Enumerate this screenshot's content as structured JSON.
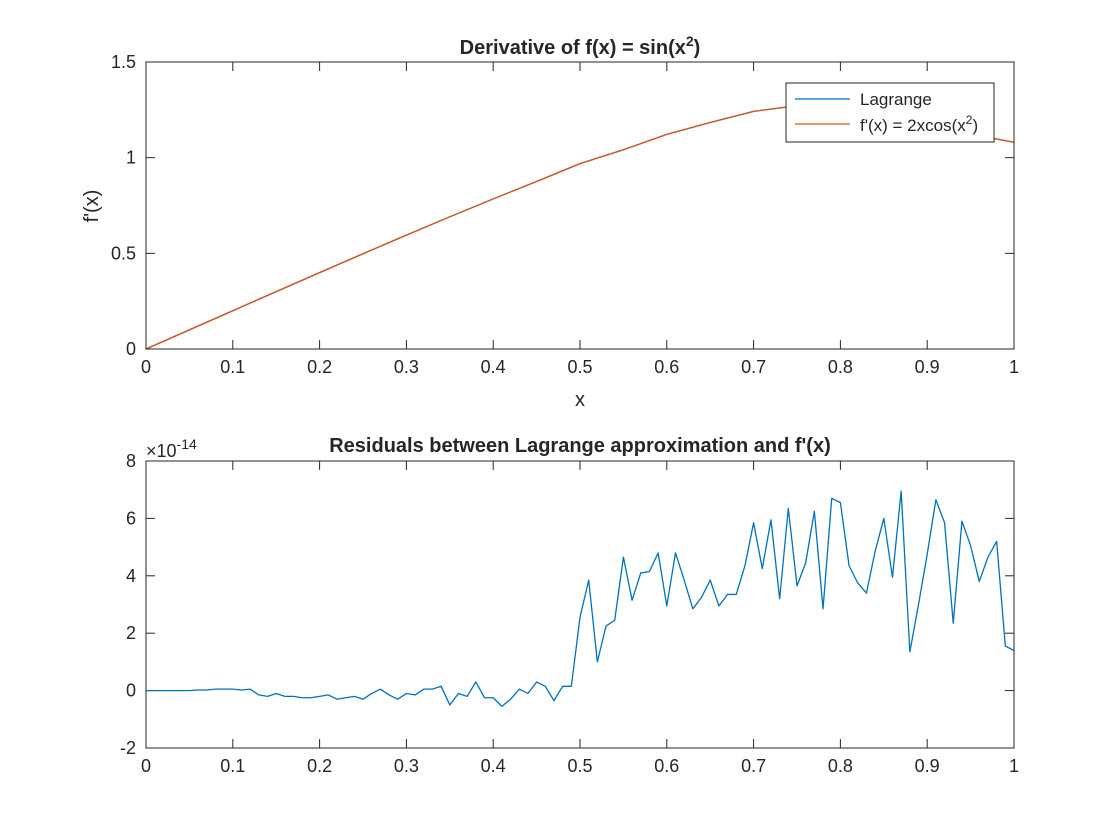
{
  "chart_data": [
    {
      "type": "line",
      "title": "Derivative of f(x) = sin(x",
      "title_sup": "2",
      "title_end": ")",
      "xlabel": "x",
      "ylabel": "f'(x)",
      "xlim": [
        0,
        1
      ],
      "ylim": [
        0,
        1.5
      ],
      "xticks": [
        0,
        0.1,
        0.2,
        0.3,
        0.4,
        0.5,
        0.6,
        0.7,
        0.8,
        0.9,
        1
      ],
      "xtick_labels": [
        "0",
        "0.1",
        "0.2",
        "0.3",
        "0.4",
        "0.5",
        "0.6",
        "0.7",
        "0.8",
        "0.9",
        "1"
      ],
      "yticks": [
        0,
        0.5,
        1,
        1.5
      ],
      "ytick_labels": [
        "0",
        "0.5",
        "1",
        "1.5"
      ],
      "grid": false,
      "legend_position": "top-right",
      "series": [
        {
          "name": "Lagrange",
          "color": "#0072BD",
          "x": [
            0,
            0.05,
            0.1,
            0.15,
            0.2,
            0.25,
            0.3,
            0.35,
            0.4,
            0.45,
            0.5,
            0.55,
            0.6,
            0.65,
            0.7,
            0.75,
            0.8,
            0.85,
            0.9,
            0.95,
            1
          ],
          "y": [
            0,
            0.1,
            0.2,
            0.2999,
            0.3992,
            0.498,
            0.5951,
            0.691,
            0.7844,
            0.8755,
            0.9689,
            1.0413,
            1.1219,
            1.1838,
            1.242,
            1.2716,
            1.2819,
            1.2654,
            1.2152,
            1.1227,
            1.0806
          ]
        },
        {
          "name": "f'(x) = 2xcos(x",
          "name_sup": "2",
          "name_end": ")",
          "color": "#D95319",
          "x": [
            0,
            0.05,
            0.1,
            0.15,
            0.2,
            0.25,
            0.3,
            0.35,
            0.4,
            0.45,
            0.5,
            0.55,
            0.6,
            0.65,
            0.7,
            0.75,
            0.8,
            0.85,
            0.9,
            0.95,
            1
          ],
          "y": [
            0,
            0.1,
            0.2,
            0.2999,
            0.3992,
            0.498,
            0.5951,
            0.691,
            0.7844,
            0.8755,
            0.9689,
            1.0413,
            1.1219,
            1.1838,
            1.242,
            1.2716,
            1.2819,
            1.2654,
            1.2152,
            1.1227,
            1.0806
          ]
        }
      ]
    },
    {
      "type": "line",
      "title": "Residuals between Lagrange approximation and f'(x)",
      "xlim": [
        0,
        1
      ],
      "ylim": [
        -2,
        8
      ],
      "y_exponent_base": "×10",
      "y_exponent": "-14",
      "xticks": [
        0,
        0.1,
        0.2,
        0.3,
        0.4,
        0.5,
        0.6,
        0.7,
        0.8,
        0.9,
        1
      ],
      "xtick_labels": [
        "0",
        "0.1",
        "0.2",
        "0.3",
        "0.4",
        "0.5",
        "0.6",
        "0.7",
        "0.8",
        "0.9",
        "1"
      ],
      "yticks": [
        -2,
        0,
        2,
        4,
        6,
        8
      ],
      "ytick_labels": [
        "-2",
        "0",
        "2",
        "4",
        "6",
        "8"
      ],
      "grid": false,
      "series": [
        {
          "color": "#0072BD",
          "x": [
            0,
            0.01,
            0.02,
            0.03,
            0.04,
            0.05,
            0.06,
            0.07,
            0.08,
            0.09,
            0.1,
            0.11,
            0.12,
            0.13,
            0.14,
            0.15,
            0.16,
            0.17,
            0.18,
            0.19,
            0.2,
            0.21,
            0.22,
            0.23,
            0.24,
            0.25,
            0.26,
            0.27,
            0.28,
            0.29,
            0.3,
            0.31,
            0.32,
            0.33,
            0.34,
            0.35,
            0.36,
            0.37,
            0.38,
            0.39,
            0.4,
            0.41,
            0.42,
            0.43,
            0.44,
            0.45,
            0.46,
            0.47,
            0.48,
            0.49,
            0.5,
            0.51,
            0.52,
            0.53,
            0.54,
            0.55,
            0.56,
            0.57,
            0.58,
            0.59,
            0.6,
            0.61,
            0.62,
            0.63,
            0.64,
            0.65,
            0.66,
            0.67,
            0.68,
            0.69,
            0.7,
            0.71,
            0.72,
            0.73,
            0.74,
            0.75,
            0.76,
            0.77,
            0.78,
            0.79,
            0.8,
            0.81,
            0.82,
            0.83,
            0.84,
            0.85,
            0.86,
            0.87,
            0.88,
            0.89,
            0.9,
            0.91,
            0.92,
            0.93,
            0.94,
            0.95,
            0.96,
            0.97,
            0.98,
            0.99,
            1
          ],
          "y": [
            0,
            0,
            0,
            0,
            0,
            0,
            0.02,
            0.02,
            0.05,
            0.05,
            0.05,
            0.02,
            0.05,
            -0.15,
            -0.2,
            -0.1,
            -0.2,
            -0.2,
            -0.25,
            -0.25,
            -0.2,
            -0.15,
            -0.3,
            -0.25,
            -0.2,
            -0.3,
            -0.1,
            0.05,
            -0.15,
            -0.3,
            -0.1,
            -0.15,
            0.05,
            0.05,
            0.15,
            -0.5,
            -0.1,
            -0.2,
            0.3,
            -0.25,
            -0.25,
            -0.55,
            -0.3,
            0.05,
            -0.1,
            0.3,
            0.15,
            -0.35,
            0.15,
            0.15,
            2.55,
            3.85,
            1.0,
            2.25,
            2.45,
            4.65,
            3.15,
            4.1,
            4.15,
            4.8,
            2.95,
            4.8,
            3.85,
            2.85,
            3.25,
            3.85,
            2.95,
            3.35,
            3.35,
            4.35,
            5.85,
            4.25,
            5.95,
            3.2,
            6.35,
            3.65,
            4.45,
            6.25,
            2.85,
            6.7,
            6.55,
            4.35,
            3.75,
            3.4,
            4.85,
            6.0,
            3.95,
            6.95,
            1.35,
            3.0,
            4.75,
            6.65,
            5.85,
            2.35,
            5.9,
            5.05,
            3.8,
            4.65,
            5.2,
            1.55,
            1.4
          ]
        }
      ]
    }
  ]
}
